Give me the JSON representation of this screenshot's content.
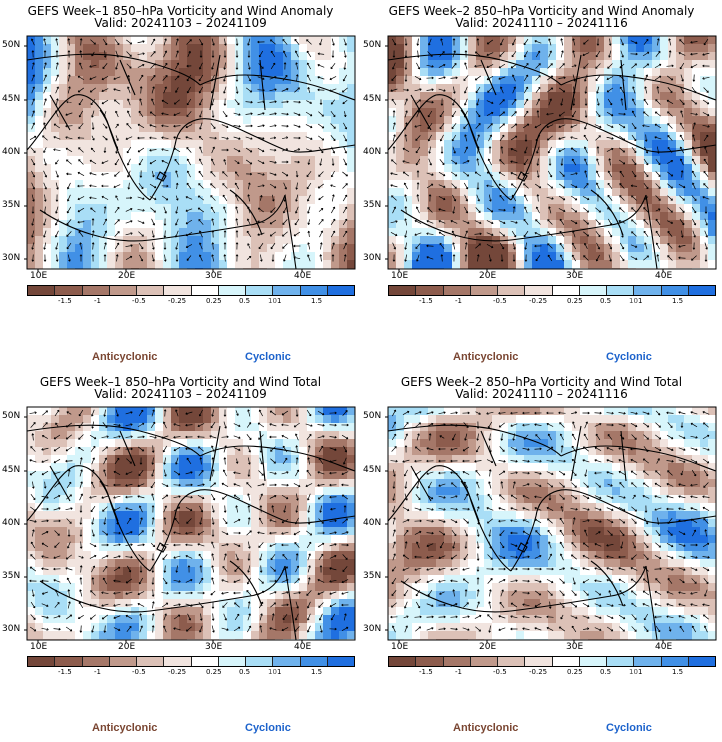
{
  "panels": [
    {
      "title": "GEFS Week–1 850–hPa Vorticity and Wind Anomaly",
      "valid": "Valid: 20241103 – 20241109",
      "seed": 11
    },
    {
      "title": "GEFS Week–2 850–hPa Vorticity and Wind Anomaly",
      "valid": "Valid: 20241110 – 20241116",
      "seed": 23
    },
    {
      "title": "GEFS Week–1 850–hPa Vorticity and Wind Total",
      "valid": "Valid: 20241103 – 20241109",
      "seed": 37
    },
    {
      "title": "GEFS Week–2 850–hPa Vorticity and Wind Total",
      "valid": "Valid: 20241110 – 20241116",
      "seed": 51
    }
  ],
  "lat_labels": [
    "50N",
    "45N",
    "40N",
    "35N",
    "30N"
  ],
  "lon_labels": [
    "10E",
    "20E",
    "30E",
    "40E"
  ],
  "colorbar_labels": [
    "-1.5",
    "-1",
    "-0.5",
    "-0.25",
    "0.25",
    "0.5",
    "1",
    "1.5"
  ],
  "colorbar_unit": "10",
  "colorbar_colors": [
    "#74473a",
    "#8d5c4d",
    "#a57768",
    "#c0998b",
    "#dcc1b7",
    "#f1e4df",
    "#ffffff",
    "#d7f5fb",
    "#a9def6",
    "#6fb2ec",
    "#4190e6",
    "#1f6fe0"
  ],
  "legend": {
    "anticyclonic": "Anticyclonic",
    "cyclonic": "Cyclonic"
  }
}
